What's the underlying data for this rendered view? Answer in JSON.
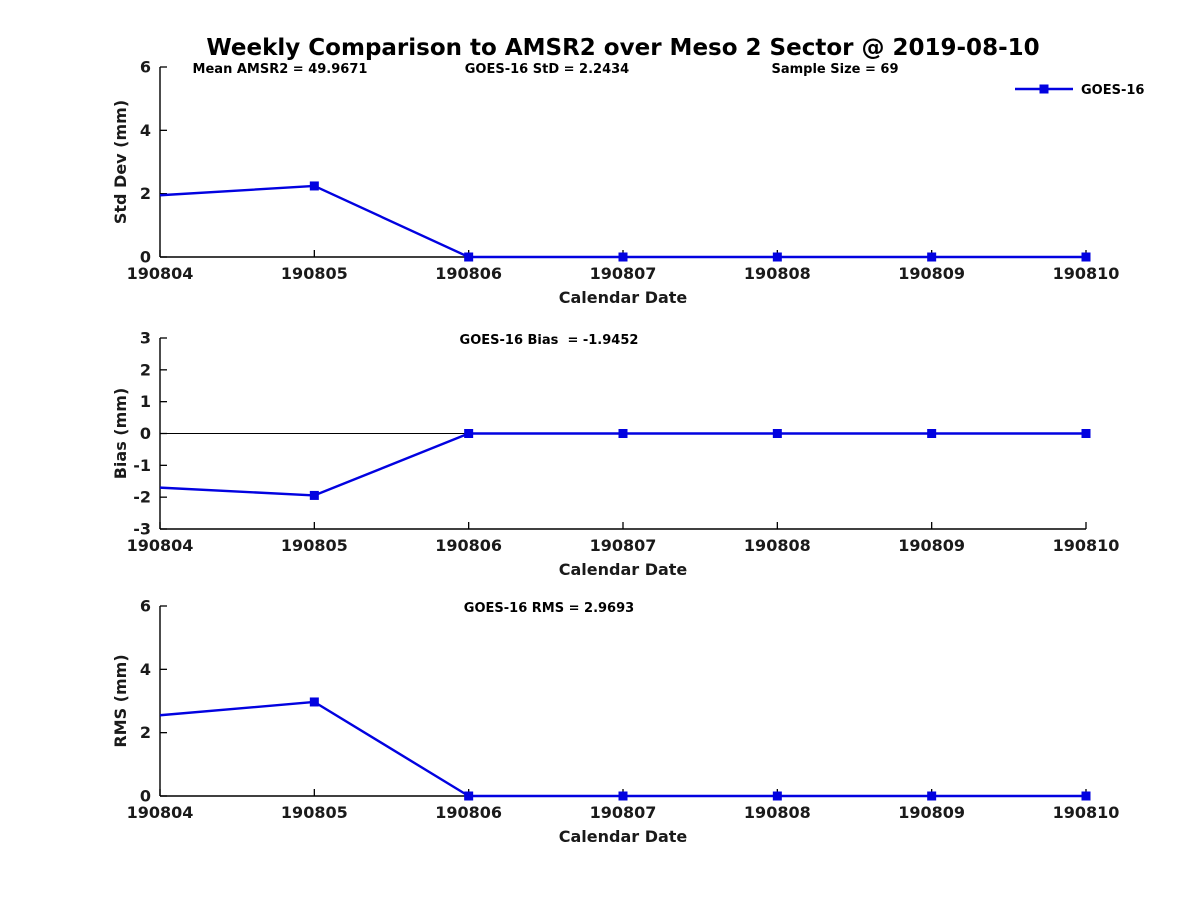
{
  "title": "Weekly Comparison to AMSR2 over Meso 2 Sector @ 2019-08-10",
  "legend": {
    "label": "GOES-16"
  },
  "colors": {
    "line": "#0202e0",
    "axis": "#000000",
    "tick_label": "#1a1a1a"
  },
  "chart_data": [
    {
      "type": "line",
      "ylabel": "Std Dev (mm)",
      "xlabel": "Calendar Date",
      "categories": [
        "190804",
        "190805",
        "190806",
        "190807",
        "190808",
        "190809",
        "190810"
      ],
      "series": [
        {
          "name": "GOES-16",
          "values": [
            1.95,
            2.2434,
            0,
            0,
            0,
            0,
            0
          ]
        }
      ],
      "ylim": [
        0,
        6
      ],
      "yticks": [
        0,
        2,
        4,
        6
      ],
      "annotations": [
        "Mean AMSR2 = 49.9671",
        "GOES-16 StD = 2.2434",
        "Sample Size = 69"
      ],
      "legend_entries": [
        "GOES-16"
      ],
      "legend_position": "top-right",
      "grid": false,
      "marker": "square"
    },
    {
      "type": "line",
      "ylabel": "Bias (mm)",
      "xlabel": "Calendar Date",
      "categories": [
        "190804",
        "190805",
        "190806",
        "190807",
        "190808",
        "190809",
        "190810"
      ],
      "series": [
        {
          "name": "GOES-16",
          "values": [
            -1.7,
            -1.9452,
            0,
            0,
            0,
            0,
            0
          ]
        }
      ],
      "ylim": [
        -3,
        3
      ],
      "yticks": [
        -3,
        -2,
        -1,
        0,
        1,
        2,
        3
      ],
      "zero_line": true,
      "annotations": [
        "GOES-16 Bias  = -1.9452"
      ],
      "grid": false,
      "marker": "square"
    },
    {
      "type": "line",
      "ylabel": "RMS (mm)",
      "xlabel": "Calendar Date",
      "categories": [
        "190804",
        "190805",
        "190806",
        "190807",
        "190808",
        "190809",
        "190810"
      ],
      "series": [
        {
          "name": "GOES-16",
          "values": [
            2.55,
            2.9693,
            0,
            0,
            0,
            0,
            0
          ]
        }
      ],
      "ylim": [
        0,
        6
      ],
      "yticks": [
        0,
        2,
        4,
        6
      ],
      "annotations": [
        "GOES-16 RMS = 2.9693"
      ],
      "grid": false,
      "marker": "square"
    }
  ]
}
